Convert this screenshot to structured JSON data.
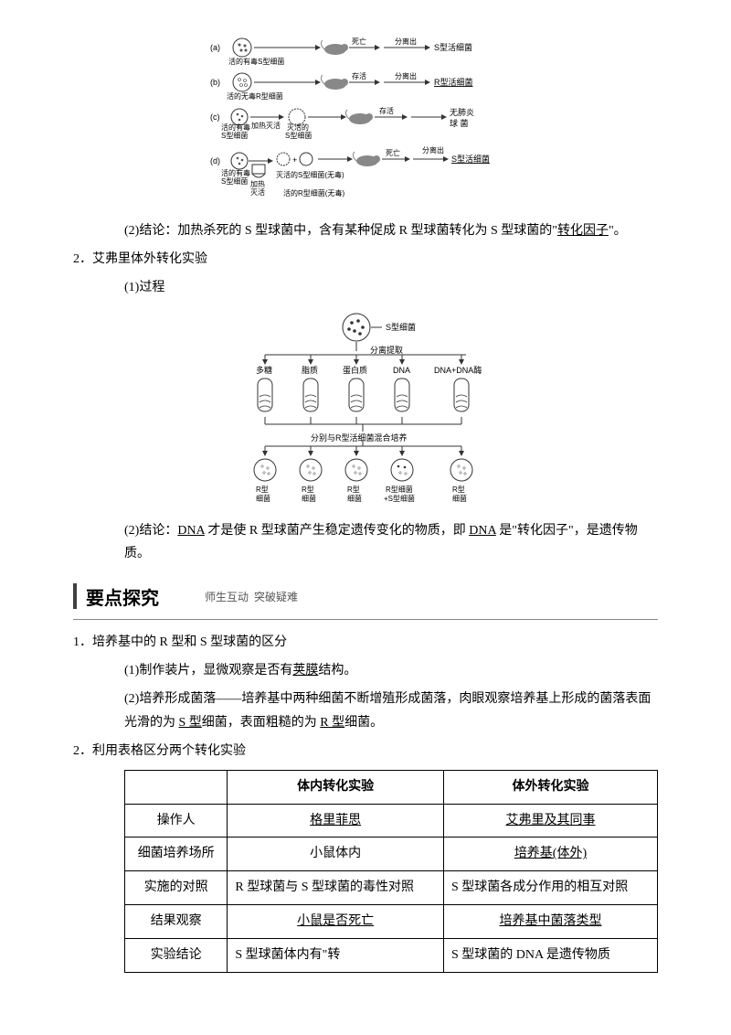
{
  "fig1": {
    "rows": [
      {
        "label": "(a)",
        "source": "活的有毒S型细菌",
        "bact_fill": "#555",
        "via": "",
        "mouse_out": "死亡",
        "sep": "分离出",
        "result": "S型活细菌",
        "result_ul": false
      },
      {
        "label": "(b)",
        "source": "活的无毒R型细菌",
        "bact_fill": "#fff",
        "via": "",
        "mouse_out": "存活",
        "sep": "分离出",
        "result": "R型活细菌",
        "result_ul": true
      },
      {
        "label": "(c)",
        "source": "活的有毒\nS型细菌",
        "bact_fill": "#555",
        "via": "加热灭活",
        "mid": "灭活的\nS型细菌",
        "mouse_out": "存活",
        "sep": "",
        "result": "无肺炎\n球 菌",
        "result_ul": false
      },
      {
        "label": "(d)",
        "source": "活的有毒\nS型细菌",
        "bact_fill": "#555",
        "via": "加热\n灭活",
        "mid": "灭活的S型细菌(无毒)",
        "mid2": "活的R型细菌(无毒)",
        "mouse_out": "死亡",
        "sep": "分离出",
        "result": "S型活细菌",
        "result_ul": true
      }
    ]
  },
  "para1": {
    "prefix": "(2)结论：加热杀死的 S 型球菌中，含有某种促成 R 型球菌转化为 S 型球菌的\"",
    "ul": "转化因子",
    "suffix": "\"。"
  },
  "item2_title": "2．艾弗里体外转化实验",
  "item2_sub1": "(1)过程",
  "fig2": {
    "top_label": "S型细菌",
    "sep_label": "分离提取",
    "components": [
      "多糖",
      "脂质",
      "蛋白质",
      "DNA",
      "DNA+DNA酶"
    ],
    "mix_label": "分别与R型活细菌混合培养",
    "results": [
      "R型\n细菌",
      "R型\n细菌",
      "R型\n细菌",
      "R型细菌\n+S型细菌",
      "R型\n细菌"
    ]
  },
  "para2": {
    "prefix": "(2)结论：",
    "ul1": "DNA",
    "mid": " 才是使 R 型球菌产生稳定遗传变化的物质，即 ",
    "ul2": "DNA",
    "suffix": " 是\"转化因子\"，是遗传物质。"
  },
  "section": {
    "title": "要点探究",
    "sub": "师生互动  突破疑难"
  },
  "list1_title": "1．培养基中的 R 型和 S 型球菌的区分",
  "list1_a_prefix": "(1)制作装片，显微观察是否有",
  "list1_a_ul": "荚膜",
  "list1_a_suffix": "结构。",
  "list1_b_prefix": "(2)培养形成菌落——培养基中两种细菌不断增殖形成菌落，肉眼观察培养基上形成的菌落表面光滑的为 ",
  "list1_b_ul1": "S 型",
  "list1_b_mid": "细菌，表面粗糙的为 ",
  "list1_b_ul2": "R 型",
  "list1_b_suffix": "细菌。",
  "list2_title": "2．利用表格区分两个转化实验",
  "table": {
    "header": [
      "",
      "体内转化实验",
      "体外转化实验"
    ],
    "rows": [
      {
        "k": "操作人",
        "a": "格里菲思",
        "a_ul": true,
        "b": "艾弗里及其同事",
        "b_ul": true
      },
      {
        "k": "细菌培养场所",
        "a": "小鼠体内",
        "a_ul": false,
        "b": "培养基(体外)",
        "b_ul": true
      },
      {
        "k": "实施的对照",
        "a": "R 型球菌与 S 型球菌的毒性对照",
        "a_ul": false,
        "b": "S 型球菌各成分作用的相互对照",
        "b_ul": false,
        "left": true
      },
      {
        "k": "结果观察",
        "a": "小鼠是否死亡",
        "a_ul": true,
        "b": "培养基中菌落类型",
        "b_ul": true
      },
      {
        "k": "实验结论",
        "a": "S 型球菌体内有\"转",
        "a_ul": false,
        "b": "S 型球菌的 DNA 是遗传物质",
        "b_ul": false,
        "left": true
      }
    ]
  }
}
